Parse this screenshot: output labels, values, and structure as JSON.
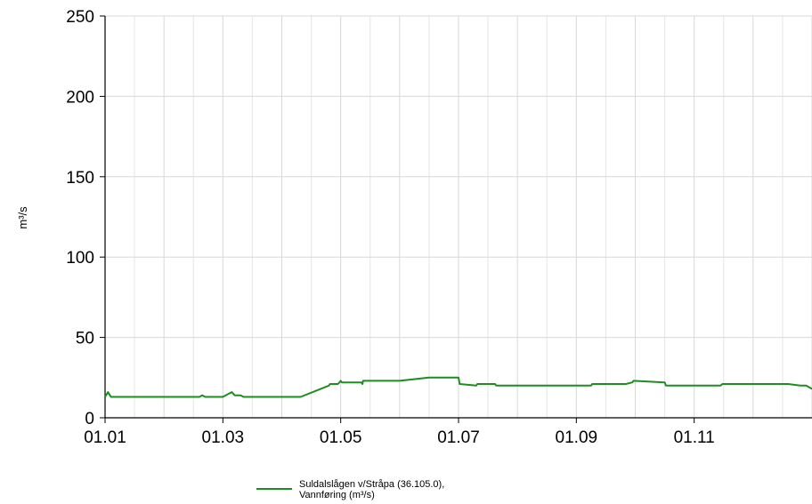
{
  "chart_data": {
    "type": "line",
    "ylabel": "m³/s",
    "ylim": [
      0,
      250
    ],
    "yticks": [
      0,
      50,
      100,
      150,
      200,
      250
    ],
    "xlim": [
      1,
      13
    ],
    "xticks": [
      {
        "x": 1,
        "label": "01.01"
      },
      {
        "x": 3,
        "label": "01.03"
      },
      {
        "x": 5,
        "label": "01.05"
      },
      {
        "x": 7,
        "label": "01.07"
      },
      {
        "x": 9,
        "label": "01.09"
      },
      {
        "x": 11,
        "label": "01.11"
      }
    ],
    "grid": true,
    "legend_position": "bottom",
    "series": [
      {
        "name": "Suldalslågen v/Stråpa (36.105.0), Vannføring (m³/s)",
        "color": "#1e8c1e",
        "x": [
          1.0,
          1.05,
          1.1,
          2.0,
          2.6,
          2.65,
          2.7,
          3.0,
          3.15,
          3.2,
          3.3,
          3.35,
          4.0,
          4.3,
          4.32,
          4.8,
          4.82,
          4.85,
          4.88,
          4.95,
          4.98,
          5.0,
          5.02,
          5.1,
          5.12,
          5.15,
          5.17,
          5.35,
          5.37,
          5.38,
          5.42,
          6.0,
          6.5,
          7.0,
          7.02,
          7.3,
          7.32,
          7.62,
          7.64,
          7.95,
          7.97,
          8.27,
          8.29,
          8.6,
          8.62,
          8.92,
          8.94,
          9.25,
          9.27,
          9.57,
          9.59,
          9.82,
          9.84,
          9.95,
          9.97,
          10.5,
          10.52,
          10.66,
          10.68,
          10.72,
          10.74,
          10.8,
          10.82,
          10.85,
          10.87,
          11.0,
          11.45,
          11.48,
          11.95,
          12.0,
          12.1,
          12.15,
          12.2,
          12.25,
          12.3,
          12.4,
          12.6,
          12.8,
          12.9,
          13.0
        ],
        "y": [
          13,
          16,
          13,
          13,
          13,
          14,
          13,
          13,
          16,
          14,
          14,
          13,
          13,
          13,
          13,
          20,
          21,
          21,
          21,
          21,
          22,
          23,
          22,
          22,
          22,
          22,
          22,
          22,
          21,
          23,
          23,
          23,
          25,
          25,
          21,
          20,
          21,
          21,
          20,
          20,
          20,
          20,
          20,
          20,
          20,
          20,
          20,
          20,
          21,
          21,
          21,
          21,
          21,
          22,
          23,
          22,
          20,
          20,
          20,
          20,
          20,
          20,
          20,
          20,
          20,
          20,
          20,
          21,
          21,
          21,
          21,
          21,
          21,
          21,
          21,
          21,
          21,
          20,
          20,
          18
        ]
      }
    ]
  }
}
